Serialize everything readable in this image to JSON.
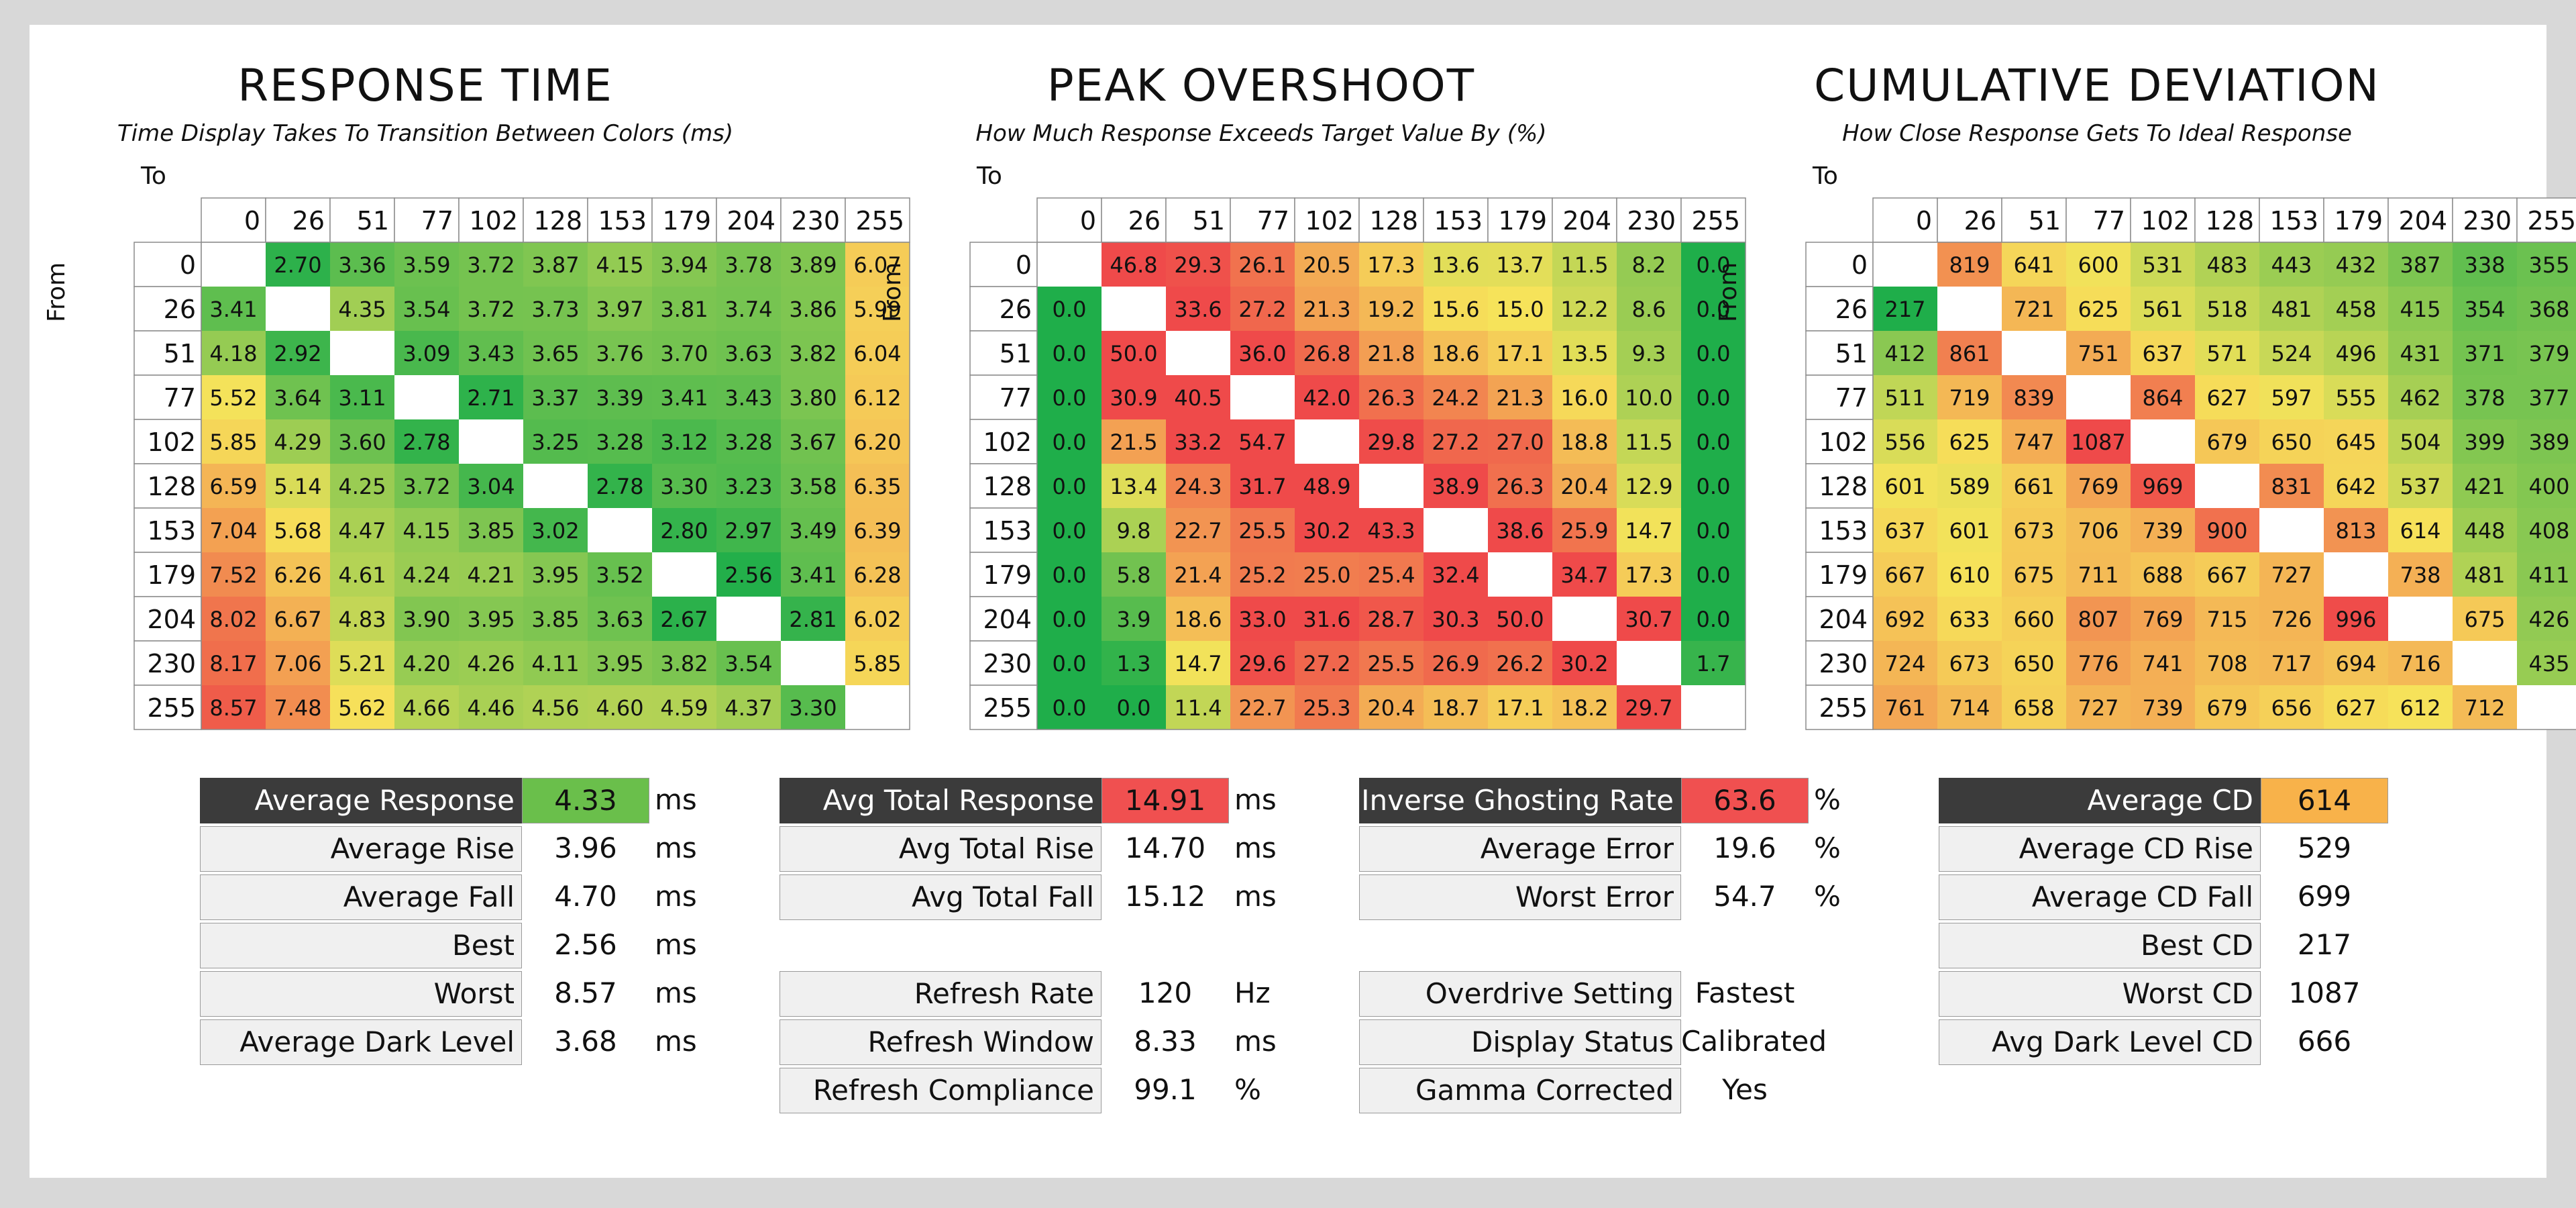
{
  "chart_data": [
    {
      "type": "heatmap",
      "title": "RESPONSE TIME",
      "subtitle": "Time Display Takes To Transition Between Colors (ms)",
      "xlabel": "To",
      "ylabel": "From",
      "levels": [
        0,
        26,
        51,
        77,
        102,
        128,
        153,
        179,
        204,
        230,
        255
      ],
      "scale": {
        "min": 2.5,
        "max": 8.6,
        "low_color": "#1fae4a",
        "high_color": "#ef5b4a",
        "mid_color": "#f6e35a",
        "direction": "low-is-good"
      },
      "values": [
        [
          null,
          2.7,
          3.36,
          3.59,
          3.72,
          3.87,
          4.15,
          3.94,
          3.78,
          3.89,
          6.07
        ],
        [
          3.41,
          null,
          4.35,
          3.54,
          3.72,
          3.73,
          3.97,
          3.81,
          3.74,
          3.86,
          5.99
        ],
        [
          4.18,
          2.92,
          null,
          3.09,
          3.43,
          3.65,
          3.76,
          3.7,
          3.63,
          3.82,
          6.04
        ],
        [
          5.52,
          3.64,
          3.11,
          null,
          2.71,
          3.37,
          3.39,
          3.41,
          3.43,
          3.8,
          6.12
        ],
        [
          5.85,
          4.29,
          3.6,
          2.78,
          null,
          3.25,
          3.28,
          3.12,
          3.28,
          3.67,
          6.2
        ],
        [
          6.59,
          5.14,
          4.25,
          3.72,
          3.04,
          null,
          2.78,
          3.3,
          3.23,
          3.58,
          6.35
        ],
        [
          7.04,
          5.68,
          4.47,
          4.15,
          3.85,
          3.02,
          null,
          2.8,
          2.97,
          3.49,
          6.39
        ],
        [
          7.52,
          6.26,
          4.61,
          4.24,
          4.21,
          3.95,
          3.52,
          null,
          2.56,
          3.41,
          6.28
        ],
        [
          8.02,
          6.67,
          4.83,
          3.9,
          3.95,
          3.85,
          3.63,
          2.67,
          null,
          2.81,
          6.02
        ],
        [
          8.17,
          7.06,
          5.21,
          4.2,
          4.26,
          4.11,
          3.95,
          3.82,
          3.54,
          null,
          5.85
        ],
        [
          8.57,
          7.48,
          5.62,
          4.66,
          4.46,
          4.56,
          4.6,
          4.59,
          4.37,
          3.3,
          null
        ]
      ],
      "decimals": 2
    },
    {
      "type": "heatmap",
      "title": "PEAK OVERSHOOT",
      "subtitle": "How Much Response Exceeds Target Value By (%)",
      "xlabel": "To",
      "ylabel": "From",
      "levels": [
        0,
        26,
        51,
        77,
        102,
        128,
        153,
        179,
        204,
        230,
        255
      ],
      "scale": {
        "min": 0,
        "max": 30,
        "low_color": "#1fae4a",
        "high_color": "#ef4a4a",
        "mid_color": "#f6e35a",
        "direction": "low-is-good"
      },
      "values": [
        [
          null,
          46.8,
          29.3,
          26.1,
          20.5,
          17.3,
          13.6,
          13.7,
          11.5,
          8.2,
          0.0
        ],
        [
          0.0,
          null,
          33.6,
          27.2,
          21.3,
          19.2,
          15.6,
          15.0,
          12.2,
          8.6,
          0.0
        ],
        [
          0.0,
          50.0,
          null,
          36.0,
          26.8,
          21.8,
          18.6,
          17.1,
          13.5,
          9.3,
          0.0
        ],
        [
          0.0,
          30.9,
          40.5,
          null,
          42.0,
          26.3,
          24.2,
          21.3,
          16.0,
          10.0,
          0.0
        ],
        [
          0.0,
          21.5,
          33.2,
          54.7,
          null,
          29.8,
          27.2,
          27.0,
          18.8,
          11.5,
          0.0
        ],
        [
          0.0,
          13.4,
          24.3,
          31.7,
          48.9,
          null,
          38.9,
          26.3,
          20.4,
          12.9,
          0.0
        ],
        [
          0.0,
          9.8,
          22.7,
          25.5,
          30.2,
          43.3,
          null,
          38.6,
          25.9,
          14.7,
          0.0
        ],
        [
          0.0,
          5.8,
          21.4,
          25.2,
          25.0,
          25.4,
          32.4,
          null,
          34.7,
          17.3,
          0.0
        ],
        [
          0.0,
          3.9,
          18.6,
          33.0,
          31.6,
          28.7,
          30.3,
          50.0,
          null,
          30.7,
          0.0
        ],
        [
          0.0,
          1.3,
          14.7,
          29.6,
          27.2,
          25.5,
          26.9,
          26.2,
          30.2,
          null,
          1.7
        ],
        [
          0.0,
          0.0,
          11.4,
          22.7,
          25.3,
          20.4,
          18.7,
          17.1,
          18.2,
          29.7,
          null
        ]
      ],
      "decimals": 1
    },
    {
      "type": "heatmap",
      "title": "CUMULATIVE DEVIATION",
      "subtitle": "How Close Response Gets To Ideal Response",
      "xlabel": "To",
      "ylabel": "From",
      "levels": [
        0,
        26,
        51,
        77,
        102,
        128,
        153,
        179,
        204,
        230,
        255
      ],
      "scale": {
        "min": 217,
        "max": 1000,
        "low_color": "#1fae4a",
        "high_color": "#ef4a4a",
        "mid_color": "#f6e35a",
        "direction": "low-is-good"
      },
      "values": [
        [
          null,
          819,
          641,
          600,
          531,
          483,
          443,
          432,
          387,
          338,
          355
        ],
        [
          217,
          null,
          721,
          625,
          561,
          518,
          481,
          458,
          415,
          354,
          368
        ],
        [
          412,
          861,
          null,
          751,
          637,
          571,
          524,
          496,
          431,
          371,
          379
        ],
        [
          511,
          719,
          839,
          null,
          864,
          627,
          597,
          555,
          462,
          378,
          377
        ],
        [
          556,
          625,
          747,
          1087,
          null,
          679,
          650,
          645,
          504,
          399,
          389
        ],
        [
          601,
          589,
          661,
          769,
          969,
          null,
          831,
          642,
          537,
          421,
          400
        ],
        [
          637,
          601,
          673,
          706,
          739,
          900,
          null,
          813,
          614,
          448,
          408
        ],
        [
          667,
          610,
          675,
          711,
          688,
          667,
          727,
          null,
          738,
          481,
          411
        ],
        [
          692,
          633,
          660,
          807,
          769,
          715,
          726,
          996,
          null,
          675,
          426
        ],
        [
          724,
          673,
          650,
          776,
          741,
          708,
          717,
          694,
          716,
          null,
          435
        ],
        [
          761,
          714,
          658,
          727,
          739,
          679,
          656,
          627,
          612,
          712,
          null
        ]
      ],
      "decimals": 0
    }
  ],
  "stats": {
    "response": {
      "rows": [
        {
          "label": "Average Response",
          "value": "4.33",
          "unit": "ms",
          "highlight": "#6abf4b",
          "header": true
        },
        {
          "label": "Average Rise",
          "value": "3.96",
          "unit": "ms"
        },
        {
          "label": "Average Fall",
          "value": "4.70",
          "unit": "ms"
        },
        {
          "label": "Best",
          "value": "2.56",
          "unit": "ms"
        },
        {
          "label": "Worst",
          "value": "8.57",
          "unit": "ms"
        },
        {
          "label": "Average Dark Level",
          "value": "3.68",
          "unit": "ms"
        }
      ]
    },
    "total": {
      "rows": [
        {
          "label": "Avg Total Response",
          "value": "14.91",
          "unit": "ms",
          "highlight": "#f05050",
          "header": true
        },
        {
          "label": "Avg Total Rise",
          "value": "14.70",
          "unit": "ms"
        },
        {
          "label": "Avg Total Fall",
          "value": "15.12",
          "unit": "ms"
        },
        {
          "label": "",
          "value": "",
          "unit": "",
          "blank": true
        },
        {
          "label": "Refresh Rate",
          "value": "120",
          "unit": "Hz"
        },
        {
          "label": "Refresh Window",
          "value": "8.33",
          "unit": "ms"
        },
        {
          "label": "Refresh Compliance",
          "value": "99.1",
          "unit": "%"
        }
      ]
    },
    "ghosting": {
      "rows": [
        {
          "label": "Inverse Ghosting Rate",
          "value": "63.6",
          "unit": "%",
          "highlight": "#f05050",
          "header": true
        },
        {
          "label": "Average Error",
          "value": "19.6",
          "unit": "%"
        },
        {
          "label": "Worst Error",
          "value": "54.7",
          "unit": "%"
        },
        {
          "label": "",
          "value": "",
          "unit": "",
          "blank": true
        },
        {
          "label": "Overdrive Setting",
          "value": "Fastest",
          "unit": ""
        },
        {
          "label": "Display Status",
          "value": "Calibrated",
          "unit": ""
        },
        {
          "label": "Gamma Corrected",
          "value": "Yes",
          "unit": ""
        }
      ]
    },
    "cd": {
      "rows": [
        {
          "label": "Average CD",
          "value": "614",
          "unit": "",
          "highlight": "#f8b24a",
          "header": true
        },
        {
          "label": "Average CD Rise",
          "value": "529",
          "unit": ""
        },
        {
          "label": "Average CD Fall",
          "value": "699",
          "unit": ""
        },
        {
          "label": "Best CD",
          "value": "217",
          "unit": ""
        },
        {
          "label": "Worst CD",
          "value": "1087",
          "unit": ""
        },
        {
          "label": "Avg Dark Level CD",
          "value": "666",
          "unit": ""
        }
      ]
    }
  }
}
